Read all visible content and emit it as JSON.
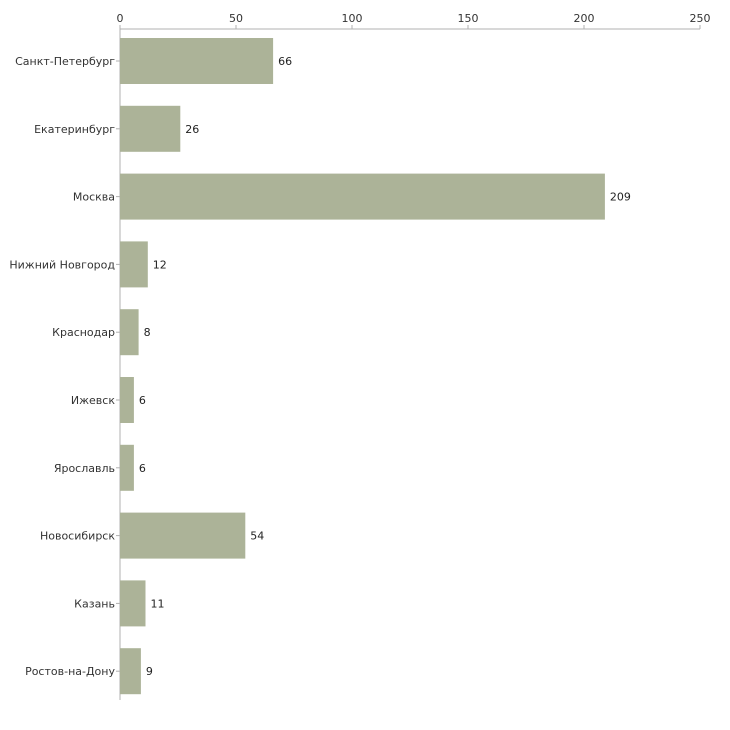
{
  "colors": {
    "bar": "#acb398",
    "axis": "#b0b0b0"
  },
  "chart_data": {
    "type": "bar",
    "orientation": "horizontal",
    "title": "",
    "xlabel": "",
    "ylabel": "",
    "xlim": [
      0,
      250
    ],
    "xticks": [
      0,
      50,
      100,
      150,
      200,
      250
    ],
    "axis_position": "top",
    "grid": false,
    "categories": [
      "Санкт-Петербург",
      "Екатеринбург",
      "Москва",
      "Нижний Новгород",
      "Краснодар",
      "Ижевск",
      "Ярославль",
      "Новосибирск",
      "Казань",
      "Ростов-на-Дону"
    ],
    "values": [
      66,
      26,
      209,
      12,
      8,
      6,
      6,
      54,
      11,
      9
    ],
    "data_labels": [
      "66",
      "26",
      "209",
      "12",
      "8",
      "6",
      "6",
      "54",
      "11",
      "9"
    ]
  }
}
